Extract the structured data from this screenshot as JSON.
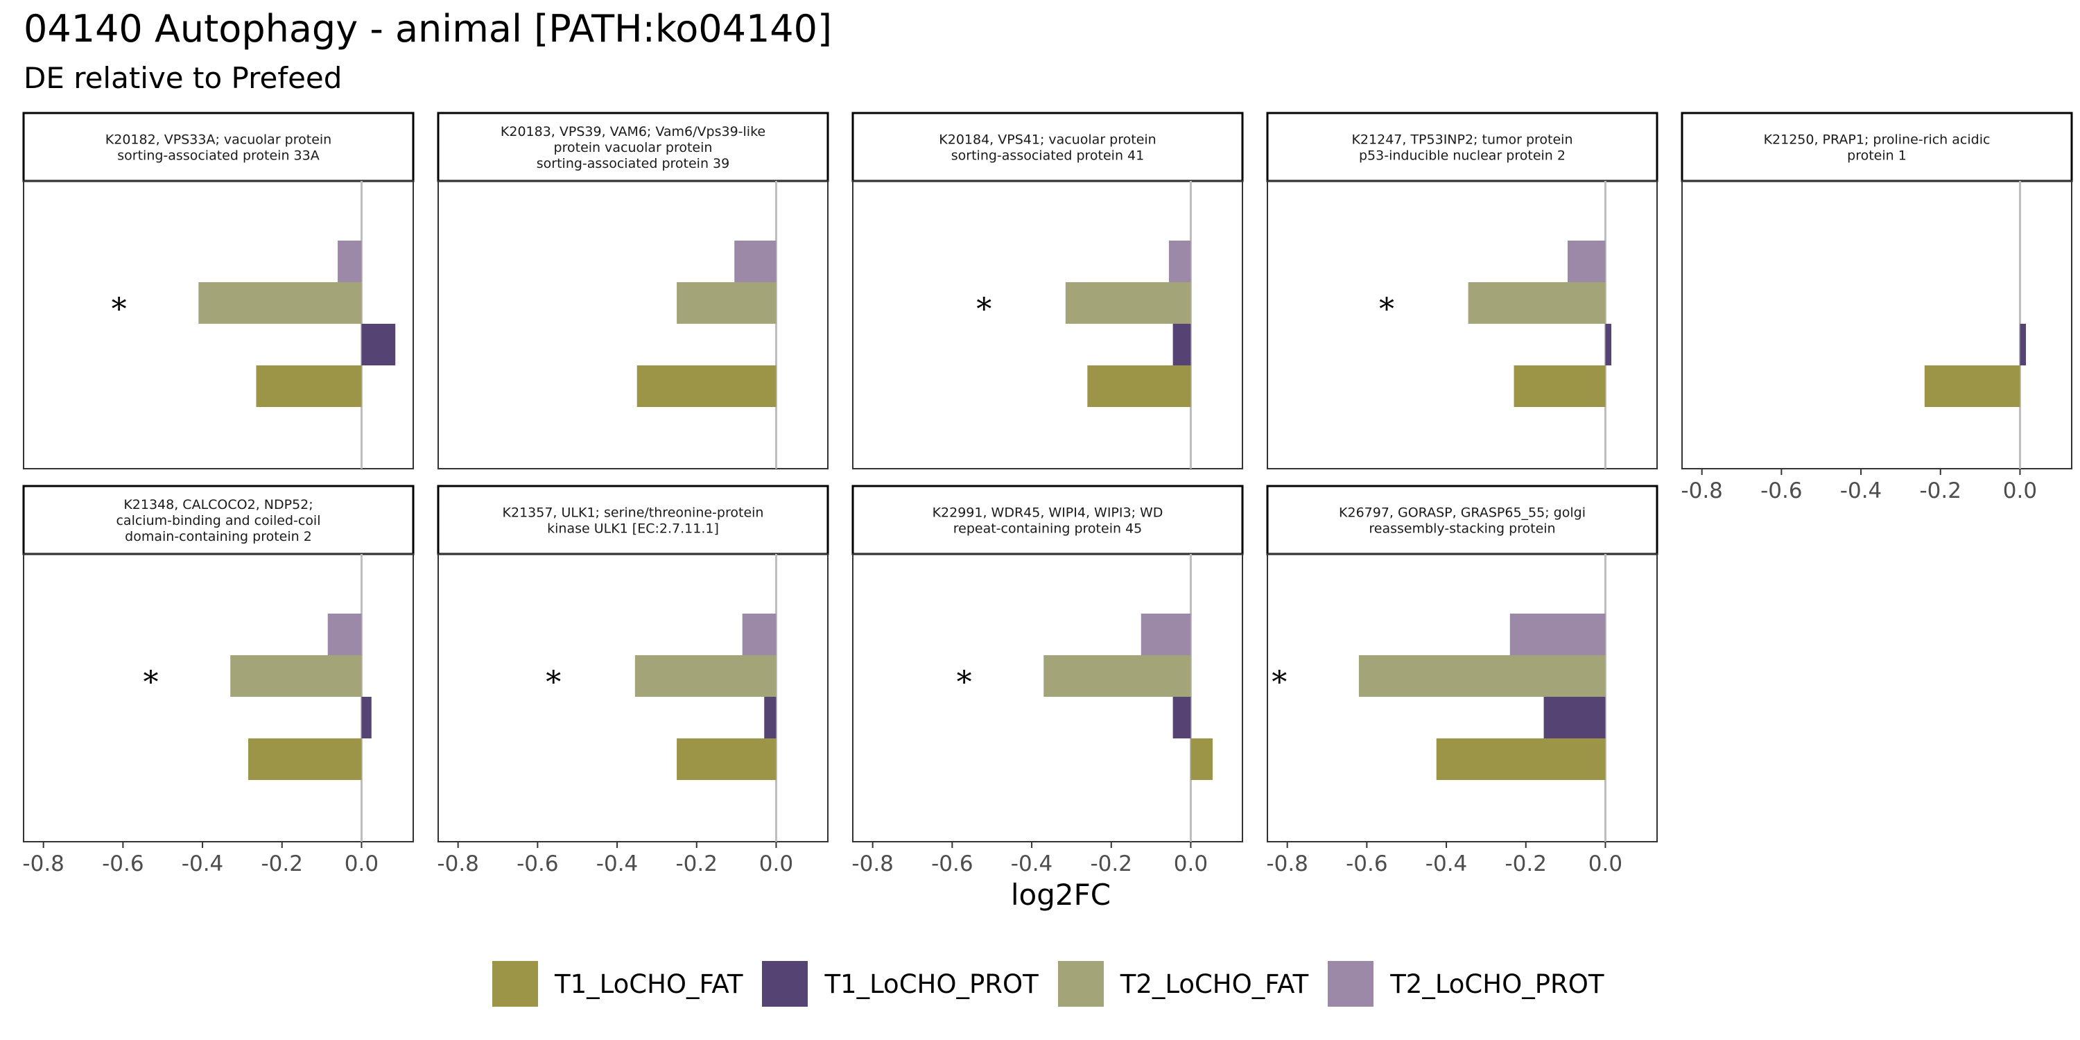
{
  "title": "04140 Autophagy - animal [PATH:ko04140]",
  "subtitle": "DE relative to Prefeed",
  "colors": {
    "T1_LoCHO_FAT": "#9c9547",
    "T1_LoCHO_PROT": "#554473",
    "T2_LoCHO_FAT": "#a3a477",
    "T2_LoCHO_PROT": "#9c89a8",
    "zero_line": "#bdbdbd",
    "strip_fill": "#ffffff",
    "panel_border": "#333333"
  },
  "legend": {
    "items": [
      {
        "label": "T1_LoCHO_FAT",
        "color": "#9c9547"
      },
      {
        "label": "T1_LoCHO_PROT",
        "color": "#554473"
      },
      {
        "label": "T2_LoCHO_FAT",
        "color": "#a3a477"
      },
      {
        "label": "T2_LoCHO_PROT",
        "color": "#9c89a8"
      }
    ]
  },
  "chart_data": {
    "type": "bar",
    "orientation": "horizontal",
    "facet_layout": "2 rows x 5 columns",
    "xlabel": "log2FC",
    "xlim": [
      -0.85,
      0.13
    ],
    "x_ticks": [
      "-0.8",
      "-0.6",
      "-0.4",
      "-0.2",
      "0.0"
    ],
    "x_tick_values": [
      -0.8,
      -0.6,
      -0.4,
      -0.2,
      0.0
    ],
    "series_order_top_to_bottom": [
      "T2_LoCHO_PROT",
      "T2_LoCHO_FAT",
      "T1_LoCHO_PROT",
      "T1_LoCHO_FAT"
    ],
    "annotation_symbol": "*",
    "panels": [
      {
        "strip": [
          "K20182, VPS33A; vacuolar protein",
          "sorting-associated protein 33A"
        ],
        "values": {
          "T2_LoCHO_PROT": -0.06,
          "T2_LoCHO_FAT": -0.41,
          "T1_LoCHO_PROT": 0.085,
          "T1_LoCHO_FAT": -0.265
        },
        "star_x": -0.61
      },
      {
        "strip": [
          "K20183, VPS39, VAM6; Vam6/Vps39-like",
          "protein vacuolar protein",
          "sorting-associated protein 39"
        ],
        "values": {
          "T2_LoCHO_PROT": -0.105,
          "T2_LoCHO_FAT": -0.25,
          "T1_LoCHO_PROT": null,
          "T1_LoCHO_FAT": -0.35
        },
        "star_x": null
      },
      {
        "strip": [
          "K20184, VPS41; vacuolar protein",
          "sorting-associated protein 41"
        ],
        "values": {
          "T2_LoCHO_PROT": -0.055,
          "T2_LoCHO_FAT": -0.315,
          "T1_LoCHO_PROT": -0.045,
          "T1_LoCHO_FAT": -0.26
        },
        "star_x": -0.52
      },
      {
        "strip": [
          "K21247, TP53INP2; tumor protein",
          "p53-inducible nuclear protein 2"
        ],
        "values": {
          "T2_LoCHO_PROT": -0.095,
          "T2_LoCHO_FAT": -0.345,
          "T1_LoCHO_PROT": 0.015,
          "T1_LoCHO_FAT": -0.23
        },
        "star_x": -0.55
      },
      {
        "strip": [
          "K21250, PRAP1; proline-rich acidic",
          "protein 1"
        ],
        "values": {
          "T2_LoCHO_PROT": null,
          "T2_LoCHO_FAT": null,
          "T1_LoCHO_PROT": 0.015,
          "T1_LoCHO_FAT": -0.24
        },
        "star_x": null
      },
      {
        "strip": [
          "K21348, CALCOCO2, NDP52;",
          "calcium-binding and coiled-coil",
          "domain-containing protein 2"
        ],
        "values": {
          "T2_LoCHO_PROT": -0.085,
          "T2_LoCHO_FAT": -0.33,
          "T1_LoCHO_PROT": 0.025,
          "T1_LoCHO_FAT": -0.285
        },
        "star_x": -0.53
      },
      {
        "strip": [
          "K21357, ULK1; serine/threonine-protein",
          "kinase ULK1 [EC:2.7.11.1]"
        ],
        "values": {
          "T2_LoCHO_PROT": -0.085,
          "T2_LoCHO_FAT": -0.355,
          "T1_LoCHO_PROT": -0.03,
          "T1_LoCHO_FAT": -0.25
        },
        "star_x": -0.56
      },
      {
        "strip": [
          "K22991, WDR45, WIPI4, WIPI3; WD",
          "repeat-containing protein 45"
        ],
        "values": {
          "T2_LoCHO_PROT": -0.125,
          "T2_LoCHO_FAT": -0.37,
          "T1_LoCHO_PROT": -0.045,
          "T1_LoCHO_FAT": 0.055
        },
        "star_x": -0.57
      },
      {
        "strip": [
          "K26797, GORASP, GRASP65_55; golgi",
          "reassembly-stacking protein"
        ],
        "values": {
          "T2_LoCHO_PROT": -0.24,
          "T2_LoCHO_FAT": -0.62,
          "T1_LoCHO_PROT": -0.155,
          "T1_LoCHO_FAT": -0.425
        },
        "star_x": -0.82
      }
    ]
  }
}
